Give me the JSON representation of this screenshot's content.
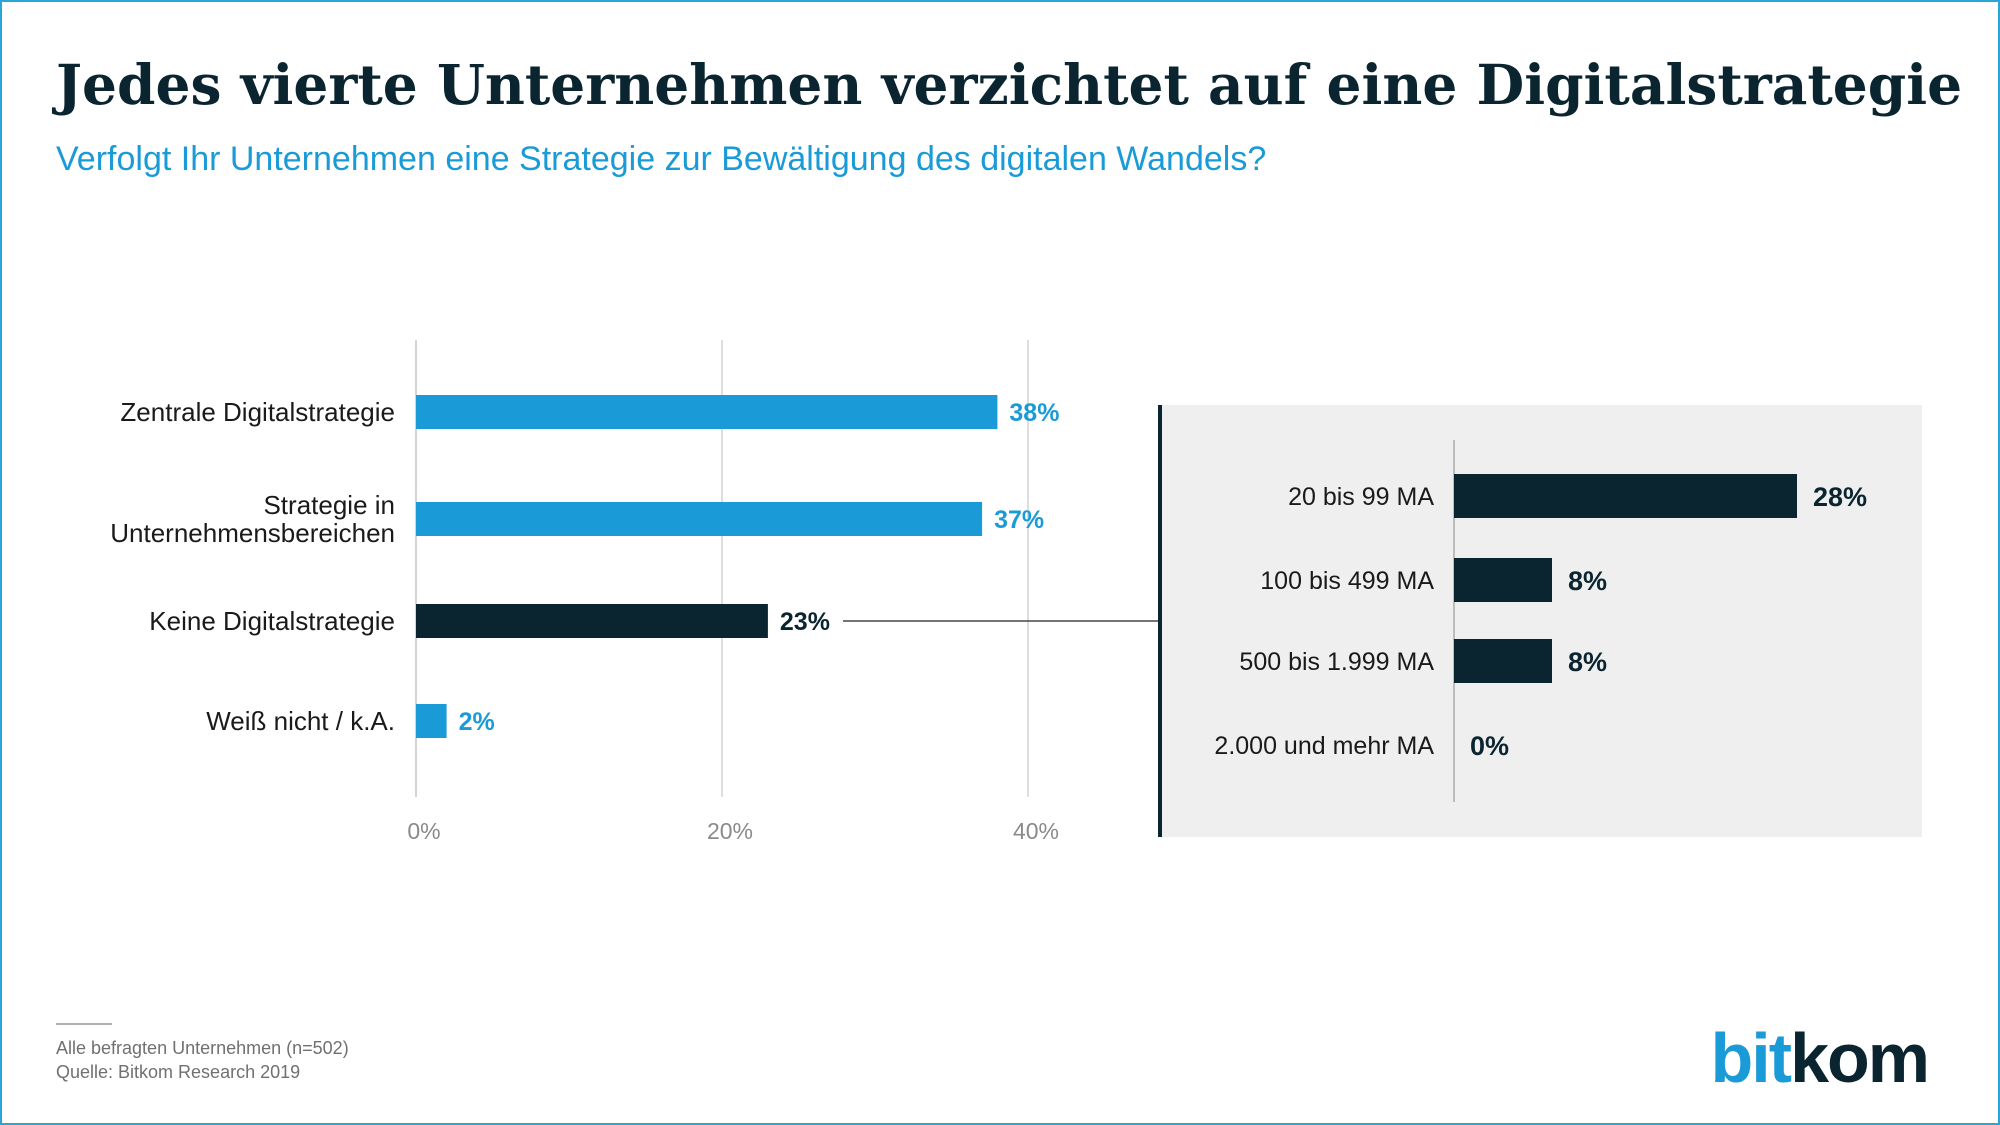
{
  "header": {
    "title": "Jedes vierte Unternehmen verzichtet auf eine Digitalstrategie",
    "subtitle": "Verfolgt Ihr Unternehmen eine Strategie zur Bewältigung des digitalen Wandels?"
  },
  "colors": {
    "accent": "#1a9bd7",
    "dark": "#0b2530",
    "panel": "#efefef",
    "grid": "#d4d4d4",
    "frame": "#2aa5d8"
  },
  "chart_data": [
    {
      "type": "bar",
      "orientation": "horizontal",
      "categories": [
        "Zentrale Digitalstrategie",
        "Strategie in Unternehmensbereichen",
        "Keine Digitalstrategie",
        "Weiß nicht / k.A."
      ],
      "category_lines": [
        [
          "Zentrale Digitalstrategie"
        ],
        [
          "Strategie in",
          "Unternehmensbereichen"
        ],
        [
          "Keine Digitalstrategie"
        ],
        [
          "Weiß nicht / k.A."
        ]
      ],
      "values": [
        38,
        37,
        23,
        2
      ],
      "value_labels": [
        "38%",
        "37%",
        "23%",
        "2%"
      ],
      "highlight_index": 2,
      "xlim": [
        0,
        40
      ],
      "x_ticks": [
        0,
        20,
        40
      ],
      "x_tick_labels": [
        "0%",
        "20%",
        "40%"
      ],
      "grid": true
    },
    {
      "type": "bar",
      "orientation": "horizontal",
      "detail_of": "Keine Digitalstrategie",
      "categories": [
        "20 bis 99 MA",
        "100 bis 499 MA",
        "500 bis 1.999 MA",
        "2.000 und mehr MA"
      ],
      "values": [
        28,
        8,
        8,
        0
      ],
      "value_labels": [
        "28%",
        "8%",
        "8%",
        "0%"
      ]
    }
  ],
  "footer": {
    "base": "Alle befragten Unternehmen (n=502)",
    "source": "Quelle: Bitkom Research 2019"
  },
  "logo": {
    "part1": "bit",
    "part2": "kom"
  }
}
